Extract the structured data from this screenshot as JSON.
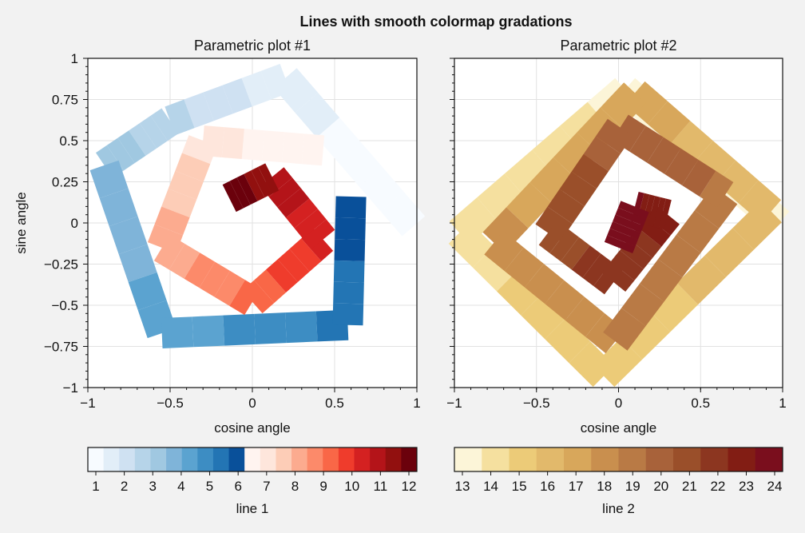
{
  "figure": {
    "suptitle": "Lines with smooth colormap gradations"
  },
  "chart_data": [
    {
      "type": "line",
      "title": "Parametric plot #1",
      "xlabel": "cosine angle",
      "ylabel": "sine angle",
      "xlim": [
        -1,
        1
      ],
      "ylim": [
        -1,
        1
      ],
      "xticks": [
        -1,
        -0.5,
        0,
        0.5,
        1
      ],
      "xticklabels": [
        "−1",
        "−0.5",
        "0",
        "0.5",
        "1"
      ],
      "yticks": [
        1,
        0.75,
        0.5,
        0.25,
        0,
        -0.25,
        -0.5,
        -0.75,
        -1
      ],
      "yticklabels": [
        "1",
        "0.75",
        "0.5",
        "0.25",
        "0",
        "−0.25",
        "−0.5",
        "−0.75",
        "−1"
      ],
      "grid": true,
      "colorbar": {
        "label": "line 1",
        "location": "bottom",
        "ticks": [
          "1",
          "2",
          "3",
          "4",
          "5",
          "6",
          "7",
          "8",
          "9",
          "10",
          "11",
          "12"
        ],
        "colors": [
          "#f7fbff",
          "#e2eef8",
          "#cfe1f2",
          "#b6d4e9",
          "#a0c8e1",
          "#7fb4d9",
          "#5ba3d0",
          "#3d8dc3",
          "#2375b4",
          "#09509a",
          "#fff4f0",
          "#fee6dc",
          "#fdcdb7",
          "#fcab8f",
          "#fc8a6a",
          "#f96747",
          "#ef3c2c",
          "#d42121",
          "#b41419",
          "#92100f",
          "#6b010c"
        ]
      },
      "series": [
        {
          "colormap": "Blues",
          "x": [
            0.98,
            0.2,
            -0.5,
            -0.9,
            -0.55,
            0.58,
            0.6
          ],
          "y": [
            -0.02,
            0.88,
            0.62,
            0.35,
            -0.67,
            -0.62,
            0.16
          ],
          "colors": [
            "#f7fbff",
            "#e2eef8",
            "#cfe1f2",
            "#b6d4e9",
            "#a0c8e1",
            "#7fb4d9",
            "#5ba3d0",
            "#3d8dc3",
            "#2375b4",
            "#09509a"
          ]
        },
        {
          "colormap": "Reds",
          "x": [
            0.43,
            -0.3,
            -0.55,
            0.0,
            0.43,
            0.12,
            -0.14
          ],
          "y": [
            0.44,
            0.5,
            -0.15,
            -0.48,
            -0.1,
            0.28,
            0.15
          ],
          "colors": [
            "#fff4f0",
            "#fee6dc",
            "#fdcdb7",
            "#fcab8f",
            "#fc8a6a",
            "#f96747",
            "#ef3c2c",
            "#d42121",
            "#b41419",
            "#92100f",
            "#6b010c"
          ]
        }
      ]
    },
    {
      "type": "line",
      "title": "Parametric plot #2",
      "xlabel": "cosine angle",
      "ylabel": "",
      "xlim": [
        -1,
        1
      ],
      "ylim": [
        -1,
        1
      ],
      "xticks": [
        -1,
        -0.5,
        0,
        0.5,
        1
      ],
      "xticklabels": [
        "−1",
        "−0.5",
        "0",
        "0.5",
        "1"
      ],
      "yticks": [
        1,
        0.75,
        0.5,
        0.25,
        0,
        -0.25,
        -0.5,
        -0.75,
        -1
      ],
      "grid": true,
      "colorbar": {
        "label": "line 2",
        "location": "bottom",
        "ticks": [
          "13",
          "14",
          "15",
          "16",
          "17",
          "18",
          "19",
          "20",
          "21",
          "22",
          "23",
          "24"
        ],
        "colors": [
          "#fcf5d8",
          "#f5e09f",
          "#eccb78",
          "#e2b96b",
          "#d8a75b",
          "#c98f4e",
          "#b97a45",
          "#a8623a",
          "#9a4f2a",
          "#8c3620",
          "#821d14",
          "#7a0e1d"
        ]
      },
      "series": [
        {
          "colormap": "Sand",
          "x": [
            0.98,
            0.04,
            -0.97,
            -0.09,
            0.93,
            0.1,
            -0.76,
            -0.02,
            0.65,
            0.01,
            -0.43,
            -0.03,
            0.3,
            0.1,
            0.0
          ],
          "y": [
            0.0,
            0.81,
            -0.06,
            -0.93,
            0.07,
            0.79,
            -0.12,
            -0.72,
            0.17,
            0.58,
            -0.06,
            -0.36,
            0.05,
            0.1,
            -0.15
          ],
          "colors": [
            "#fcf5d8",
            "#f5e09f",
            "#eccb78",
            "#e2b96b",
            "#d8a75b",
            "#c98f4e",
            "#b97a45",
            "#a8623a",
            "#9a4f2a",
            "#8c3620",
            "#821d14",
            "#7a0e1d"
          ]
        }
      ]
    }
  ]
}
